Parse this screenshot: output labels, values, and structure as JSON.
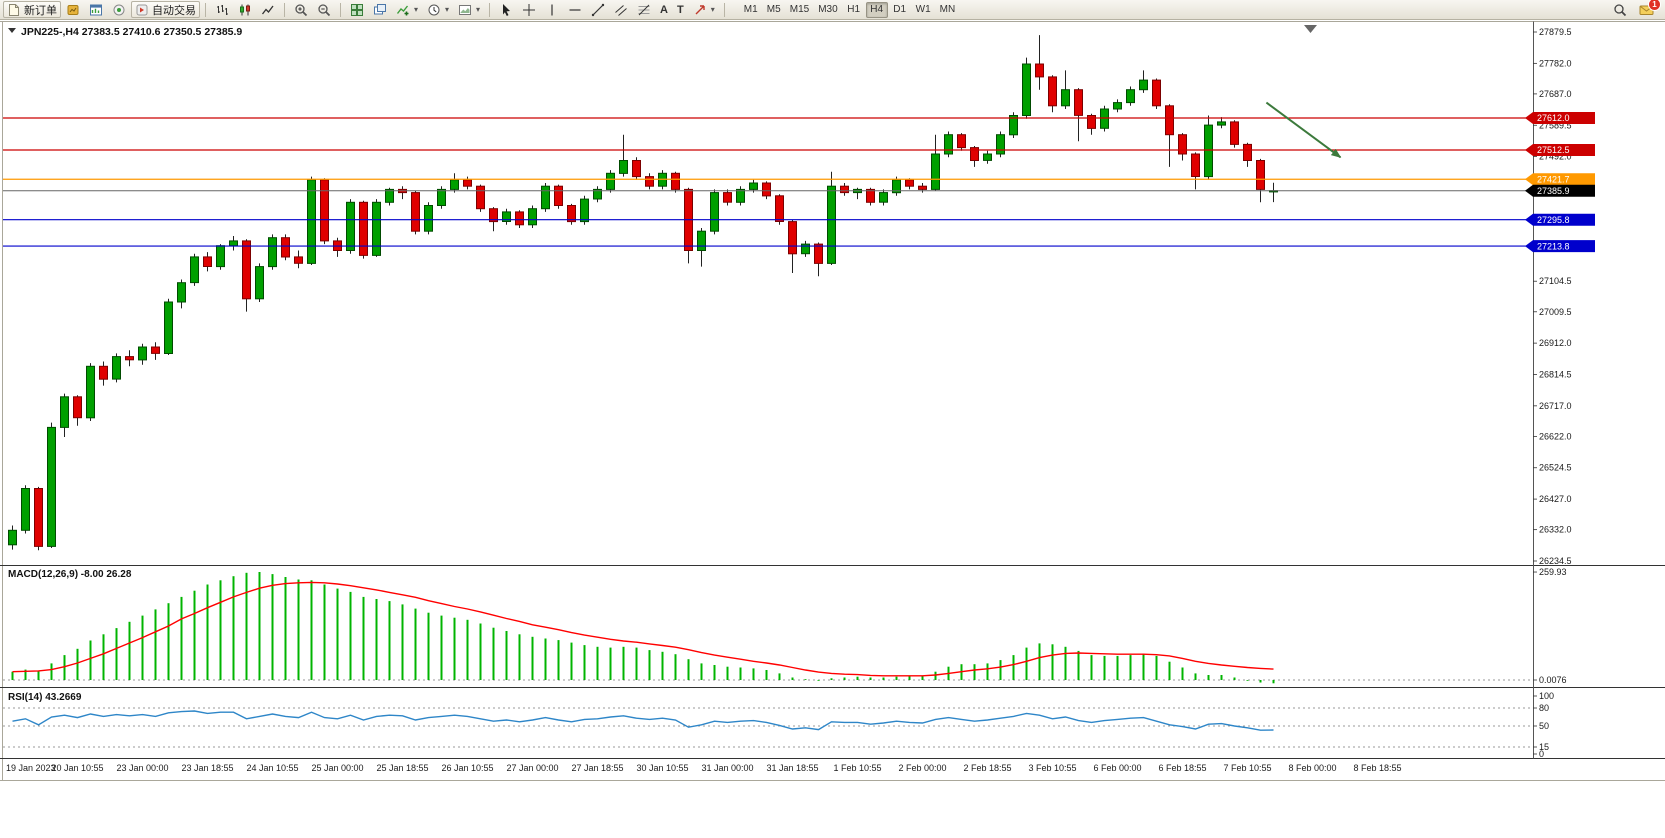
{
  "toolbar": {
    "new_order_label": "新订单",
    "auto_trading_label": "自动交易",
    "timeframes": [
      "M1",
      "M5",
      "M15",
      "M30",
      "H1",
      "H4",
      "D1",
      "W1",
      "MN"
    ],
    "active_timeframe": "H4",
    "notification_count": "1",
    "icons": [
      "new-order",
      "market-watch",
      "new-chart",
      "signals",
      "auto-trading",
      "bar-chart",
      "candlestick-chart",
      "line-chart",
      "zoom-in",
      "zoom-out",
      "tile-windows",
      "cascade-windows",
      "indicators",
      "periods",
      "template",
      "cursor",
      "crosshair",
      "vertical-line",
      "horizontal-line",
      "trendline",
      "equidistant-channel",
      "fibonacci",
      "text",
      "text-label",
      "arrows",
      "search",
      "notifications"
    ]
  },
  "chart": {
    "header": "JPN225-,H4  27383.5 27410.6 27350.5 27385.9",
    "symbol": "JPN225-",
    "timeframe": "H4"
  },
  "colors": {
    "bull": "#00a000",
    "bear": "#e00000",
    "wick": "#222222",
    "resistance_line": "#cc0000",
    "pivot_line": "#ff9900",
    "support_line": "#0000cc",
    "current_price_tag": "#000000",
    "macd_histogram": "#00b400",
    "macd_signal": "#ff0000",
    "rsi_line": "#2e86c8",
    "arrow": "#3c7a3c"
  },
  "chart_data": [
    {
      "type": "candlestick",
      "symbol": "JPN225-",
      "timeframe": "H4",
      "ylim": [
        26234.5,
        27879.5
      ],
      "y_axis_labels": [
        "27879.5",
        "27782.0",
        "27687.0",
        "27589.5",
        "27492.0",
        "27104.5",
        "27009.5",
        "26912.0",
        "26814.5",
        "26717.0",
        "26622.0",
        "26524.5",
        "26427.0",
        "26332.0",
        "26234.5"
      ],
      "x_labels": [
        "19 Jan 2023",
        "20 Jan 10:55",
        "23 Jan 00:00",
        "23 Jan 18:55",
        "24 Jan 10:55",
        "25 Jan 00:00",
        "25 Jan 18:55",
        "26 Jan 10:55",
        "27 Jan 00:00",
        "27 Jan 18:55",
        "30 Jan 10:55",
        "31 Jan 00:00",
        "31 Jan 18:55",
        "1 Feb 10:55",
        "2 Feb 00:00",
        "2 Feb 18:55",
        "3 Feb 10:55",
        "6 Feb 00:00",
        "6 Feb 18:55",
        "7 Feb 10:55",
        "8 Feb 00:00",
        "8 Feb 18:55"
      ],
      "bars_per_x_label": 5,
      "candles": [
        [
          26285,
          26345,
          26270,
          26330
        ],
        [
          26330,
          26470,
          26320,
          26460
        ],
        [
          26460,
          26465,
          26268,
          26280
        ],
        [
          26280,
          26665,
          26275,
          26650
        ],
        [
          26650,
          26755,
          26620,
          26745
        ],
        [
          26745,
          26750,
          26655,
          26680
        ],
        [
          26680,
          26850,
          26670,
          26840
        ],
        [
          26840,
          26855,
          26780,
          26800
        ],
        [
          26800,
          26880,
          26790,
          26870
        ],
        [
          26870,
          26890,
          26840,
          26860
        ],
        [
          26860,
          26910,
          26845,
          26900
        ],
        [
          26900,
          26915,
          26860,
          26880
        ],
        [
          26880,
          27050,
          26875,
          27040
        ],
        [
          27040,
          27110,
          27020,
          27100
        ],
        [
          27100,
          27190,
          27090,
          27180
        ],
        [
          27180,
          27195,
          27135,
          27150
        ],
        [
          27150,
          27220,
          27140,
          27215
        ],
        [
          27215,
          27245,
          27200,
          27230
        ],
        [
          27230,
          27235,
          27010,
          27050
        ],
        [
          27050,
          27160,
          27040,
          27150
        ],
        [
          27150,
          27250,
          27140,
          27240
        ],
        [
          27240,
          27250,
          27170,
          27180
        ],
        [
          27180,
          27200,
          27145,
          27160
        ],
        [
          27160,
          27430,
          27155,
          27420
        ],
        [
          27420,
          27425,
          27220,
          27230
        ],
        [
          27230,
          27240,
          27180,
          27200
        ],
        [
          27200,
          27360,
          27190,
          27350
        ],
        [
          27350,
          27355,
          27175,
          27185
        ],
        [
          27185,
          27360,
          27180,
          27350
        ],
        [
          27350,
          27395,
          27340,
          27390
        ],
        [
          27390,
          27400,
          27360,
          27380
        ],
        [
          27380,
          27385,
          27250,
          27260
        ],
        [
          27260,
          27350,
          27250,
          27340
        ],
        [
          27340,
          27400,
          27330,
          27390
        ],
        [
          27390,
          27440,
          27380,
          27420
        ],
        [
          27420,
          27430,
          27390,
          27400
        ],
        [
          27400,
          27405,
          27320,
          27330
        ],
        [
          27330,
          27335,
          27260,
          27290
        ],
        [
          27290,
          27330,
          27280,
          27320
        ],
        [
          27320,
          27325,
          27270,
          27280
        ],
        [
          27280,
          27340,
          27270,
          27330
        ],
        [
          27330,
          27410,
          27320,
          27400
        ],
        [
          27400,
          27405,
          27330,
          27340
        ],
        [
          27340,
          27345,
          27280,
          27290
        ],
        [
          27290,
          27370,
          27280,
          27360
        ],
        [
          27360,
          27400,
          27350,
          27390
        ],
        [
          27390,
          27450,
          27380,
          27440
        ],
        [
          27440,
          27560,
          27430,
          27480
        ],
        [
          27480,
          27490,
          27420,
          27430
        ],
        [
          27430,
          27440,
          27390,
          27400
        ],
        [
          27400,
          27450,
          27390,
          27440
        ],
        [
          27440,
          27445,
          27380,
          27390
        ],
        [
          27390,
          27395,
          27160,
          27200
        ],
        [
          27200,
          27270,
          27150,
          27260
        ],
        [
          27260,
          27390,
          27250,
          27380
        ],
        [
          27380,
          27390,
          27340,
          27350
        ],
        [
          27350,
          27400,
          27340,
          27390
        ],
        [
          27390,
          27420,
          27380,
          27410
        ],
        [
          27410,
          27415,
          27360,
          27370
        ],
        [
          27370,
          27375,
          27280,
          27290
        ],
        [
          27290,
          27295,
          27130,
          27190
        ],
        [
          27190,
          27230,
          27180,
          27220
        ],
        [
          27220,
          27225,
          27120,
          27160
        ],
        [
          27160,
          27445,
          27155,
          27400
        ],
        [
          27400,
          27410,
          27370,
          27380
        ],
        [
          27380,
          27395,
          27360,
          27390
        ],
        [
          27390,
          27395,
          27340,
          27350
        ],
        [
          27350,
          27390,
          27340,
          27380
        ],
        [
          27380,
          27430,
          27370,
          27420
        ],
        [
          27420,
          27425,
          27390,
          27400
        ],
        [
          27400,
          27410,
          27380,
          27390
        ],
        [
          27390,
          27560,
          27385,
          27500
        ],
        [
          27500,
          27570,
          27490,
          27560
        ],
        [
          27560,
          27565,
          27510,
          27520
        ],
        [
          27520,
          27525,
          27460,
          27480
        ],
        [
          27480,
          27510,
          27470,
          27500
        ],
        [
          27500,
          27570,
          27490,
          27560
        ],
        [
          27560,
          27630,
          27550,
          27620
        ],
        [
          27620,
          27800,
          27610,
          27780
        ],
        [
          27780,
          27870,
          27700,
          27740
        ],
        [
          27740,
          27745,
          27630,
          27650
        ],
        [
          27650,
          27760,
          27640,
          27700
        ],
        [
          27700,
          27705,
          27540,
          27620
        ],
        [
          27620,
          27625,
          27560,
          27580
        ],
        [
          27580,
          27650,
          27570,
          27640
        ],
        [
          27640,
          27670,
          27630,
          27660
        ],
        [
          27660,
          27710,
          27650,
          27700
        ],
        [
          27700,
          27760,
          27690,
          27730
        ],
        [
          27730,
          27735,
          27640,
          27650
        ],
        [
          27650,
          27655,
          27460,
          27560
        ],
        [
          27560,
          27565,
          27480,
          27500
        ],
        [
          27500,
          27505,
          27390,
          27430
        ],
        [
          27430,
          27620,
          27420,
          27590
        ],
        [
          27590,
          27615,
          27580,
          27600
        ],
        [
          27600,
          27605,
          27520,
          27530
        ],
        [
          27530,
          27535,
          27460,
          27480
        ],
        [
          27480,
          27485,
          27350,
          27390
        ],
        [
          27383.5,
          27410.6,
          27350.5,
          27385.9
        ]
      ],
      "hlines": [
        {
          "price": 27612.0,
          "label": "27612.0",
          "color": "#cc0000"
        },
        {
          "price": 27512.5,
          "label": "27512.5",
          "color": "#cc0000"
        },
        {
          "price": 27421.7,
          "label": "27421.7",
          "color": "#ff9900"
        },
        {
          "price": 27295.8,
          "label": "27295.8",
          "color": "#0000cc"
        },
        {
          "price": 27213.8,
          "label": "27213.8",
          "color": "#0000cc"
        }
      ],
      "current_price": {
        "price": 27385.9,
        "label": "27385.9",
        "color": "#000000"
      },
      "arrow_annotation": {
        "from": {
          "bar": 96.8,
          "price": 27660
        },
        "to": {
          "bar": 102.5,
          "price": 27490
        }
      }
    },
    {
      "type": "bar",
      "name": "MACD",
      "label": "MACD(12,26,9) -8.00 26.28",
      "current_macd": -8.0,
      "current_signal": 26.28,
      "y_axis_labels": [
        "259.93",
        "0.0076"
      ],
      "histogram": [
        20,
        25,
        22,
        40,
        60,
        75,
        95,
        110,
        125,
        140,
        155,
        170,
        185,
        200,
        215,
        230,
        240,
        250,
        258,
        260,
        255,
        248,
        242,
        240,
        230,
        220,
        212,
        200,
        195,
        190,
        182,
        172,
        162,
        155,
        150,
        145,
        136,
        126,
        118,
        110,
        104,
        100,
        96,
        90,
        84,
        80,
        78,
        80,
        78,
        72,
        68,
        62,
        50,
        40,
        36,
        32,
        30,
        28,
        24,
        16,
        6,
        2,
        -2,
        4,
        6,
        8,
        6,
        6,
        8,
        10,
        10,
        20,
        32,
        38,
        38,
        40,
        48,
        60,
        78,
        88,
        86,
        80,
        70,
        60,
        58,
        58,
        60,
        62,
        58,
        44,
        30,
        16,
        12,
        12,
        6,
        -2,
        -6,
        -8
      ],
      "signal": [
        20,
        21,
        22,
        25,
        32,
        41,
        52,
        63,
        76,
        89,
        102,
        116,
        130,
        147,
        160,
        174,
        187,
        200,
        211,
        221,
        228,
        232,
        234,
        235,
        234,
        231,
        227,
        222,
        217,
        211,
        205,
        199,
        191,
        184,
        177,
        171,
        164,
        156,
        148,
        141,
        133,
        127,
        121,
        114,
        108,
        103,
        98,
        94,
        91,
        87,
        83,
        79,
        73,
        66,
        60,
        55,
        50,
        45,
        41,
        36,
        30,
        24,
        19,
        16,
        14,
        13,
        11,
        10,
        10,
        10,
        10,
        12,
        16,
        20,
        24,
        27,
        31,
        37,
        45,
        54,
        60,
        64,
        65,
        64,
        63,
        62,
        62,
        62,
        61,
        58,
        52,
        45,
        40,
        36,
        33,
        30,
        28,
        26.28
      ]
    },
    {
      "type": "line",
      "name": "RSI",
      "label": "RSI(14) 43.2669",
      "current": 43.2669,
      "levels": [
        80,
        50,
        15
      ],
      "y_axis_labels": [
        "100",
        "80",
        "50",
        "15",
        "0"
      ],
      "values": [
        58,
        62,
        52,
        65,
        68,
        64,
        70,
        66,
        69,
        67,
        69,
        66,
        72,
        74,
        75,
        71,
        73,
        73,
        62,
        66,
        70,
        66,
        64,
        73,
        64,
        62,
        68,
        60,
        66,
        68,
        67,
        60,
        64,
        66,
        68,
        66,
        62,
        58,
        60,
        57,
        60,
        64,
        60,
        57,
        61,
        62,
        65,
        67,
        63,
        61,
        63,
        60,
        48,
        52,
        58,
        56,
        58,
        59,
        56,
        51,
        45,
        47,
        44,
        57,
        56,
        56,
        53,
        55,
        58,
        56,
        55,
        61,
        64,
        61,
        58,
        60,
        63,
        66,
        71,
        68,
        62,
        65,
        59,
        56,
        59,
        61,
        63,
        64,
        58,
        52,
        49,
        45,
        53,
        54,
        50,
        47,
        43,
        43.27
      ]
    }
  ]
}
